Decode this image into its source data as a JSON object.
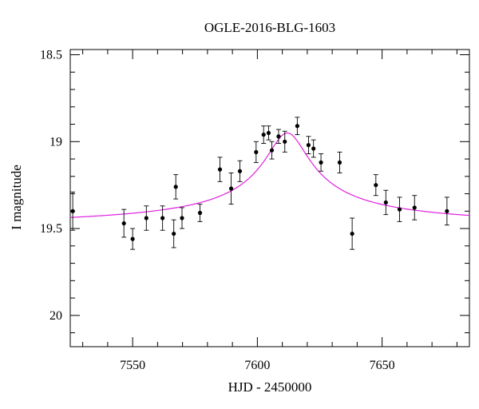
{
  "chart_data": {
    "type": "scatter",
    "title": "OGLE-2016-BLG-1603",
    "xlabel": "HJD - 2450000",
    "ylabel": "I magnitude",
    "xlim": [
      7525,
      7685
    ],
    "ylim": [
      20.18,
      18.47
    ],
    "y_inverted": true,
    "x_ticks": [
      7550,
      7600,
      7650
    ],
    "x_tick_labels": [
      "7550",
      "7600",
      "7650"
    ],
    "y_ticks": [
      18.5,
      19,
      19.5,
      20
    ],
    "y_tick_labels": [
      "18.5",
      "19",
      "19.5",
      "20"
    ],
    "grid": false,
    "points": [
      {
        "x": 7526.0,
        "y": 19.4,
        "err": 0.11
      },
      {
        "x": 7546.5,
        "y": 19.47,
        "err": 0.08
      },
      {
        "x": 7550.0,
        "y": 19.56,
        "err": 0.06
      },
      {
        "x": 7555.5,
        "y": 19.44,
        "err": 0.07
      },
      {
        "x": 7562.0,
        "y": 19.44,
        "err": 0.07
      },
      {
        "x": 7566.5,
        "y": 19.53,
        "err": 0.08
      },
      {
        "x": 7567.3,
        "y": 19.26,
        "err": 0.07
      },
      {
        "x": 7569.8,
        "y": 19.44,
        "err": 0.06
      },
      {
        "x": 7577.0,
        "y": 19.41,
        "err": 0.05
      },
      {
        "x": 7585.0,
        "y": 19.16,
        "err": 0.07
      },
      {
        "x": 7589.5,
        "y": 19.27,
        "err": 0.09
      },
      {
        "x": 7593.0,
        "y": 19.17,
        "err": 0.06
      },
      {
        "x": 7599.5,
        "y": 19.06,
        "err": 0.06
      },
      {
        "x": 7602.5,
        "y": 18.96,
        "err": 0.05
      },
      {
        "x": 7604.5,
        "y": 18.95,
        "err": 0.04
      },
      {
        "x": 7605.8,
        "y": 19.05,
        "err": 0.05
      },
      {
        "x": 7608.5,
        "y": 18.97,
        "err": 0.04
      },
      {
        "x": 7611.0,
        "y": 19.0,
        "err": 0.06
      },
      {
        "x": 7616.0,
        "y": 18.91,
        "err": 0.05
      },
      {
        "x": 7620.5,
        "y": 19.02,
        "err": 0.05
      },
      {
        "x": 7622.5,
        "y": 19.04,
        "err": 0.05
      },
      {
        "x": 7625.5,
        "y": 19.12,
        "err": 0.05
      },
      {
        "x": 7633.0,
        "y": 19.12,
        "err": 0.06
      },
      {
        "x": 7638.0,
        "y": 19.53,
        "err": 0.09
      },
      {
        "x": 7647.5,
        "y": 19.25,
        "err": 0.06
      },
      {
        "x": 7651.5,
        "y": 19.35,
        "err": 0.07
      },
      {
        "x": 7657.0,
        "y": 19.39,
        "err": 0.07
      },
      {
        "x": 7663.0,
        "y": 19.38,
        "err": 0.07
      },
      {
        "x": 7676.0,
        "y": 19.4,
        "err": 0.08
      }
    ],
    "model_curve": {
      "baseline_mag": 19.5,
      "peak_mag": 18.95,
      "t0": 7612.0,
      "tE": 16.0,
      "color": "#e020e0"
    },
    "point_color": "#000000"
  }
}
